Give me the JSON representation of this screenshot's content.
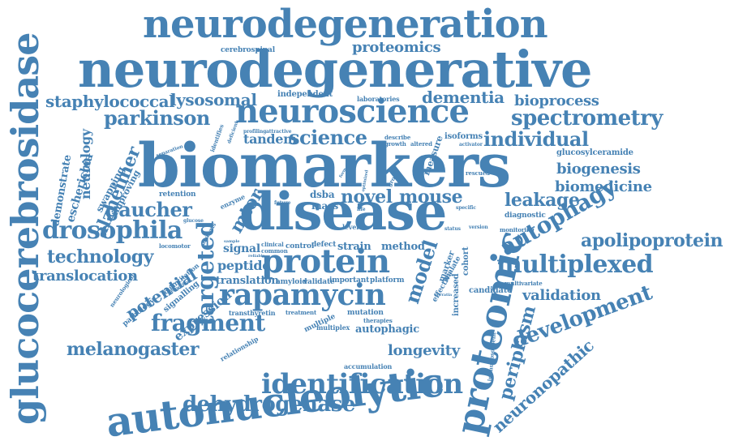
{
  "cloud": {
    "accent_color": "#4682b4",
    "words": {
      "biomarkers": "biomarkers",
      "neurodegenerative": "neurodegenerative",
      "disease": "disease",
      "neurodegeneration": "neurodegeneration",
      "autonucleolytic": "autonucleolytic",
      "glucocerebrosidase": "glucocerebrosidase",
      "neuroscience": "neuroscience",
      "proteomic": "proteomic",
      "protein": "protein",
      "rapamycin": "rapamycin",
      "identification": "identification",
      "drosophila": "drosophila",
      "multiplexed": "multiplexed",
      "autophagy": "autophagy",
      "spectrometry": "spectrometry",
      "dehydrogenase": "dehydrogenase",
      "fragment": "fragment",
      "development": "development",
      "apolipoprotein": "apolipoprotein",
      "gaucher": "gaucher",
      "technology": "technology",
      "melanogaster": "melanogaster",
      "science": "science",
      "individual": "individual",
      "parkinson": "parkinson",
      "targeted": "targeted",
      "proteomics": "proteomics",
      "mouse": "mouse",
      "novel": "novel",
      "leakage": "leakage",
      "staphylococcal": "staphylococcal",
      "lysosomal": "lysosomal",
      "dementia": "dementia",
      "bioprocess": "bioprocess",
      "biogenesis": "biogenesis",
      "biomedicine": "biomedicine",
      "alzheimer": "alzheimer",
      "potential": "potential",
      "translocation": "translocation",
      "periplasm": "periplasm",
      "neuronopathic": "neuronopathic",
      "validation": "validation",
      "longevity": "longevity",
      "tandem": "tandem",
      "model": "model",
      "mtor": "mtor",
      "peptide": "peptide",
      "signal": "signal",
      "translation": "translation",
      "neurology": "neurology",
      "escherichia": "escherichia",
      "demonstrate": "demonstrate",
      "swapping": "swapping",
      "improving": "improving",
      "autophagic": "autophagic",
      "strain": "strain",
      "method": "method",
      "expression": "expression",
      "independent": "independent",
      "laboratories": "laboratories",
      "cerebrospinal": "cerebrospinal",
      "glucosylceramide": "glucosylceramide",
      "diagnostic": "diagnostic",
      "monitoring": "monitoring",
      "multivariate": "multivariate",
      "dsba": "dsba",
      "mass": "mass",
      "isoforms": "isoforms",
      "measure": "measure",
      "retention": "retention",
      "enzyme": "enzyme",
      "transthyretin": "transthyretin",
      "mutation": "mutation",
      "multiple": "multiple",
      "multiplex": "multiplex",
      "therapies": "therapies",
      "accumulation": "accumulation",
      "amyloid": "amyloid",
      "validate": "validate",
      "important": "important",
      "platform": "platform",
      "candidate": "candidate",
      "effective": "effective",
      "increased": "increased",
      "cohort": "cohort",
      "marker": "marker",
      "malate": "malate",
      "immunosorbent": "immunosorbent",
      "relationship": "relationship",
      "treatment": "treatment",
      "signalling": "signalling",
      "pathology": "pathology",
      "quantitation": "quantitation",
      "neurological": "neurological",
      "locomotor": "locomotor",
      "clinical": "clinical",
      "common": "common",
      "control": "control",
      "defect": "defect",
      "rescued": "rescued",
      "altered": "altered",
      "growth": "growth",
      "describe": "describe",
      "activator": "activator",
      "profiling": "profiling",
      "attractive": "attractive",
      "separation": "separation",
      "identifies": "identifies",
      "deficient": "deficient",
      "specific": "specific",
      "group": "group",
      "status": "status",
      "version": "version",
      "level": "level",
      "analysis": "analysis",
      "future": "future",
      "life": "life",
      "glucose": "glucose",
      "sample": "sample",
      "reliable": "reliable",
      "detection": "detection",
      "serratia": "serratia",
      "form": "form",
      "optimized": "optimized"
    }
  }
}
